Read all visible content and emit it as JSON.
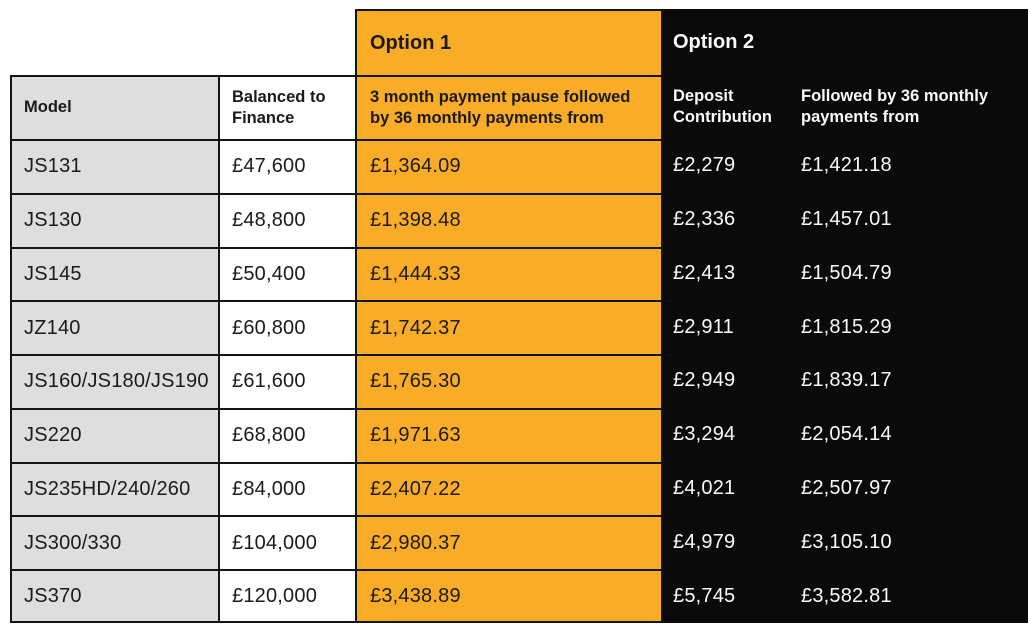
{
  "table": {
    "option1_label": "Option 1",
    "option2_label": "Option 2",
    "headers": {
      "model": "Model",
      "balanced": "Balanced to Finance",
      "option1_desc": "3 month payment pause followed by 36 monthly payments from",
      "deposit": "Deposit Contribution",
      "followed": "Followed by 36 monthly payments from"
    },
    "rows": [
      {
        "model": "JS131",
        "balanced_to_finance": "£47,600",
        "option1_payment": "£1,364.09",
        "deposit_contribution": "£2,279",
        "option2_payment": "£1,421.18"
      },
      {
        "model": "JS130",
        "balanced_to_finance": "£48,800",
        "option1_payment": "£1,398.48",
        "deposit_contribution": "£2,336",
        "option2_payment": "£1,457.01"
      },
      {
        "model": "JS145",
        "balanced_to_finance": "£50,400",
        "option1_payment": "£1,444.33",
        "deposit_contribution": "£2,413",
        "option2_payment": "£1,504.79"
      },
      {
        "model": "JZ140",
        "balanced_to_finance": "£60,800",
        "option1_payment": "£1,742.37",
        "deposit_contribution": "£2,911",
        "option2_payment": "£1,815.29"
      },
      {
        "model": "JS160/JS180/JS190",
        "balanced_to_finance": "£61,600",
        "option1_payment": "£1,765.30",
        "deposit_contribution": "£2,949",
        "option2_payment": "£1,839.17"
      },
      {
        "model": "JS220",
        "balanced_to_finance": "£68,800",
        "option1_payment": "£1,971.63",
        "deposit_contribution": "£3,294",
        "option2_payment": "£2,054.14"
      },
      {
        "model": "JS235HD/240/260",
        "balanced_to_finance": "£84,000",
        "option1_payment": "£2,407.22",
        "deposit_contribution": "£4,021",
        "option2_payment": "£2,507.97"
      },
      {
        "model": "JS300/330",
        "balanced_to_finance": "£104,000",
        "option1_payment": "£2,980.37",
        "deposit_contribution": "£4,979",
        "option2_payment": "£3,105.10"
      },
      {
        "model": "JS370",
        "balanced_to_finance": "£120,000",
        "option1_payment": "£3,438.89",
        "deposit_contribution": "£5,745",
        "option2_payment": "£3,582.81"
      }
    ],
    "colors": {
      "orange": "#F9AC27",
      "black": "#0A0A0A",
      "gray": "#DEDEDE",
      "border": "#141414",
      "text_dark": "#1B1B1B",
      "text_light": "#FAFAFA"
    }
  }
}
